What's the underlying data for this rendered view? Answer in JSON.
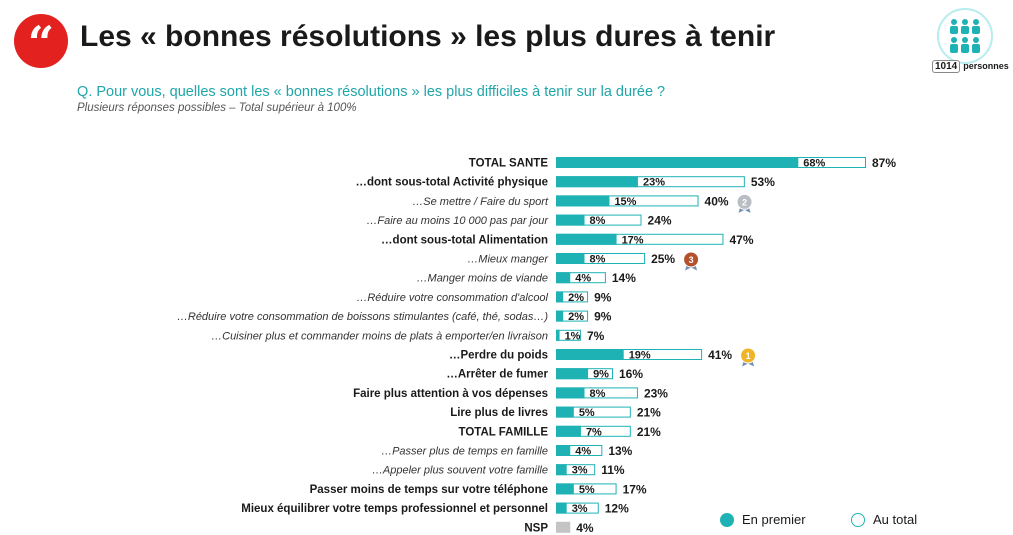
{
  "header": {
    "quote_glyph": "“",
    "title": "Les « bonnes résolutions » les plus dures à tenir",
    "question": "Q. Pour vous, quelles sont les « bonnes résolutions » les plus difficiles à tenir sur la durée ?",
    "note": "Plusieurs réponses possibles – Total supérieur à 100%",
    "sample_size": "1014",
    "sample_unit": "personnes"
  },
  "legend": {
    "first": "En premier",
    "total": "Au total"
  },
  "colors": {
    "teal": "#1fb2b5",
    "teal_text": "#1fa6a9",
    "red": "#e3211f",
    "gray_bar": "#c4c4c4",
    "gold": "#f0b429",
    "silver": "#b9bec4",
    "bronze": "#b5502d"
  },
  "chart_data": {
    "type": "bar",
    "orientation": "horizontal",
    "xlim": [
      0,
      100
    ],
    "series": [
      {
        "name": "En premier"
      },
      {
        "name": "Au total"
      }
    ],
    "rows": [
      {
        "label": "TOTAL SANTE",
        "first": 68,
        "total": 87,
        "style": "bold"
      },
      {
        "label": "…dont sous-total Activité physique",
        "first": 23,
        "total": 53,
        "style": "bold"
      },
      {
        "label": "…Se mettre / Faire du sport",
        "first": 15,
        "total": 40,
        "style": "italic",
        "medal": "2"
      },
      {
        "label": "…Faire au moins 10 000 pas par jour",
        "first": 8,
        "total": 24,
        "style": "italic"
      },
      {
        "label": "…dont sous-total Alimentation",
        "first": 17,
        "total": 47,
        "style": "bold"
      },
      {
        "label": "…Mieux manger",
        "first": 8,
        "total": 25,
        "style": "italic",
        "medal": "3"
      },
      {
        "label": "…Manger moins de viande",
        "first": 4,
        "total": 14,
        "style": "italic"
      },
      {
        "label": "…Réduire votre consommation d'alcool",
        "first": 2,
        "total": 9,
        "style": "italic"
      },
      {
        "label": "…Réduire votre consommation de boissons stimulantes (café, thé, sodas…)",
        "first": 2,
        "total": 9,
        "style": "italic"
      },
      {
        "label": "…Cuisiner plus et commander moins de plats à emporter/en livraison",
        "first": 1,
        "total": 7,
        "style": "italic"
      },
      {
        "label": "…Perdre du poids",
        "first": 19,
        "total": 41,
        "style": "bold",
        "medal": "1"
      },
      {
        "label": "…Arrêter de fumer",
        "first": 9,
        "total": 16,
        "style": "bold"
      },
      {
        "label": "Faire plus attention à vos dépenses",
        "first": 8,
        "total": 23,
        "style": "bold"
      },
      {
        "label": "Lire plus de livres",
        "first": 5,
        "total": 21,
        "style": "bold"
      },
      {
        "label": "TOTAL FAMILLE",
        "first": 7,
        "total": 21,
        "style": "bold"
      },
      {
        "label": "…Passer plus de temps en famille",
        "first": 4,
        "total": 13,
        "style": "italic"
      },
      {
        "label": "…Appeler plus souvent votre famille",
        "first": 3,
        "total": 11,
        "style": "italic"
      },
      {
        "label": "Passer moins de temps sur votre téléphone",
        "first": 5,
        "total": 17,
        "style": "bold"
      },
      {
        "label": "Mieux équilibrer votre temps professionnel et personnel",
        "first": 3,
        "total": 12,
        "style": "bold"
      },
      {
        "label": "NSP",
        "first": null,
        "total": 4,
        "style": "bold",
        "gray": true
      }
    ]
  }
}
